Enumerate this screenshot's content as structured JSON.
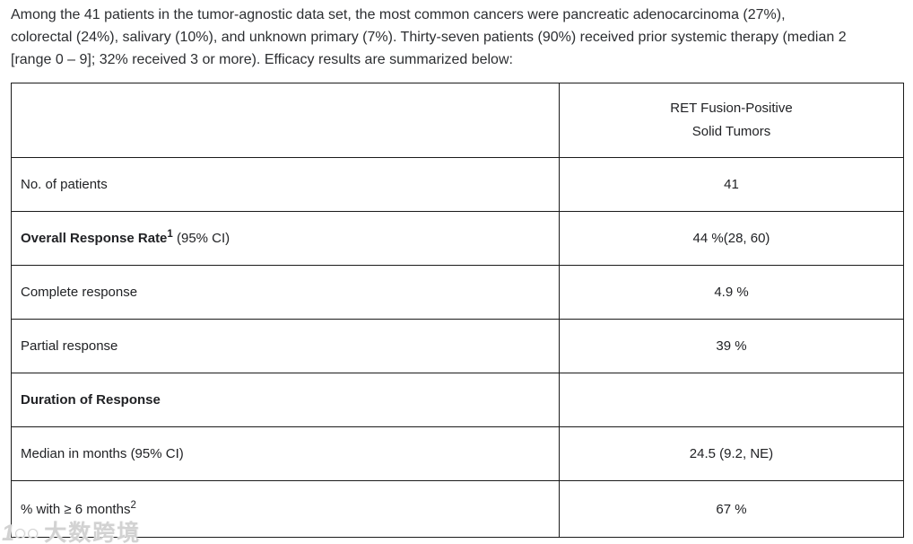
{
  "intro": {
    "lines": [
      "Among the 41 patients in the tumor-agnostic data set, the most common cancers were pancreatic adenocarcinoma (27%),",
      "colorectal (24%), salivary (10%), and unknown primary (7%). Thirty-seven patients (90%) received prior systemic therapy (median 2",
      "[range 0 – 9]; 32% received 3 or more). Efficacy results are summarized below:"
    ]
  },
  "table": {
    "header": {
      "label": "",
      "line1": "RET Fusion-Positive",
      "line2": "Solid Tumors"
    },
    "rows": [
      {
        "label": "No. of patients",
        "value": "41"
      },
      {
        "label": "Overall Response Rate",
        "sup": "1",
        "suffix": " (95% CI)",
        "value": "44 %(28, 60)"
      },
      {
        "label": "Complete response",
        "value": "4.9 %"
      },
      {
        "label": "Partial response",
        "value": "39 %"
      },
      {
        "label": "Duration of Response",
        "value": ""
      },
      {
        "label": "Median in months (95% CI)",
        "value": "24.5 (9.2, NE)"
      },
      {
        "label": "% with ≥ 6 months",
        "sup": "2",
        "value": "67 %"
      }
    ]
  },
  "watermark": {
    "logo": "1○○",
    "text": "大数跨境"
  }
}
